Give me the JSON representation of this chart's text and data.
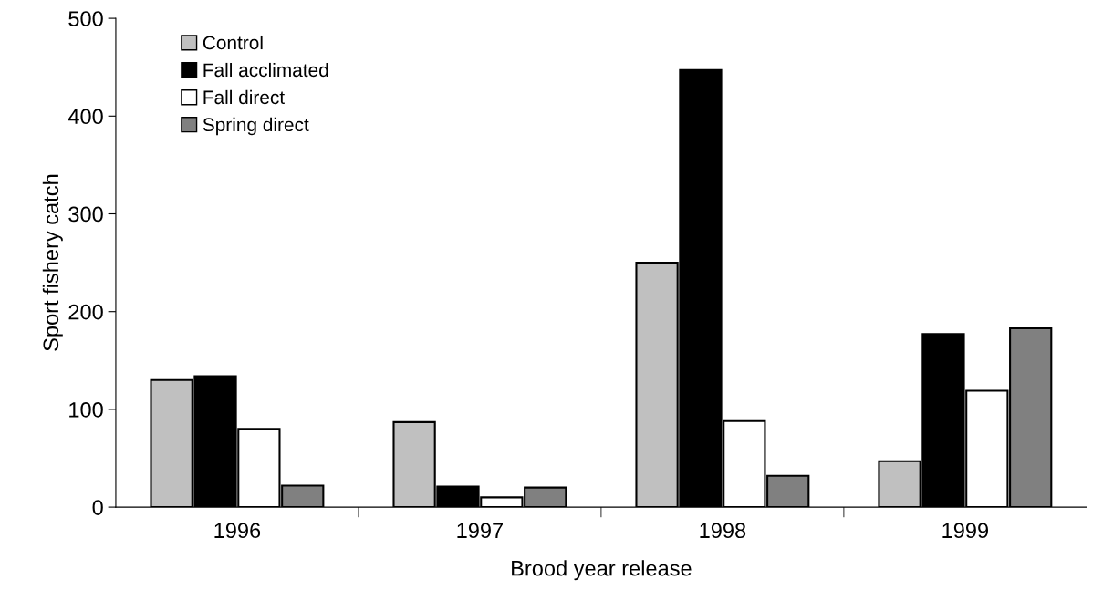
{
  "chart_data": {
    "type": "bar",
    "xlabel": "Brood year release",
    "ylabel": "Sport fishery catch",
    "categories": [
      "1996",
      "1997",
      "1998",
      "1999"
    ],
    "series": [
      {
        "name": "Control",
        "color": "#c0c0c0",
        "values": [
          130,
          87,
          250,
          47
        ]
      },
      {
        "name": "Fall acclimated",
        "color": "#000000",
        "values": [
          134,
          21,
          447,
          177
        ]
      },
      {
        "name": "Fall direct",
        "color": "#ffffff",
        "values": [
          80,
          10,
          88,
          119
        ]
      },
      {
        "name": "Spring direct",
        "color": "#808080",
        "values": [
          22,
          20,
          32,
          183
        ]
      }
    ],
    "ylim": [
      0,
      500
    ],
    "yticks": [
      0,
      100,
      200,
      300,
      400,
      500
    ],
    "grid": false,
    "legend": "top left"
  }
}
